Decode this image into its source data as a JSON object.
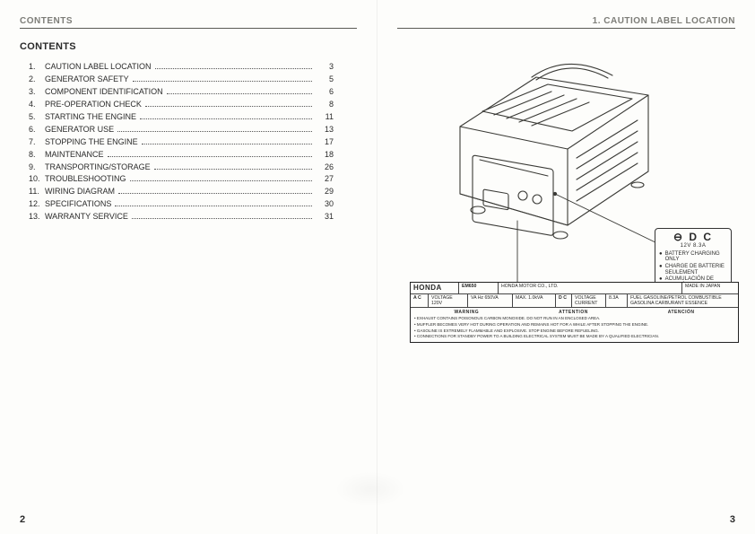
{
  "left": {
    "runningHead": "CONTENTS",
    "title": "CONTENTS",
    "toc": [
      {
        "n": "1.",
        "label": "CAUTION LABEL LOCATION",
        "page": "3"
      },
      {
        "n": "2.",
        "label": "GENERATOR SAFETY",
        "page": "5"
      },
      {
        "n": "3.",
        "label": "COMPONENT IDENTIFICATION",
        "page": "6"
      },
      {
        "n": "4.",
        "label": "PRE-OPERATION CHECK",
        "page": "8"
      },
      {
        "n": "5.",
        "label": "STARTING THE ENGINE",
        "page": "11"
      },
      {
        "n": "6.",
        "label": "GENERATOR USE",
        "page": "13"
      },
      {
        "n": "7.",
        "label": "STOPPING THE ENGINE",
        "page": "17"
      },
      {
        "n": "8.",
        "label": "MAINTENANCE",
        "page": "18"
      },
      {
        "n": "9.",
        "label": "TRANSPORTING/STORAGE",
        "page": "26"
      },
      {
        "n": "10.",
        "label": "TROUBLESHOOTING",
        "page": "27"
      },
      {
        "n": "11.",
        "label": "WIRING DIAGRAM",
        "page": "29"
      },
      {
        "n": "12.",
        "label": "SPECIFICATIONS",
        "page": "30"
      },
      {
        "n": "13.",
        "label": "WARRANTY SERVICE",
        "page": "31"
      }
    ],
    "pageNumber": "2"
  },
  "right": {
    "runningHead": "1. CAUTION LABEL LOCATION",
    "dcLabel": {
      "prefix": "⊖",
      "title": "D C",
      "sub": "12V 8.3A",
      "items": [
        "BATTERY CHARGING ONLY",
        "CHARGE DE BATTERIE SEULEMENT",
        "ACUMULACIÓN DE BATERÍA SOLAMENTE"
      ]
    },
    "specLabel": {
      "brand": "HONDA",
      "model": "EM650",
      "maker": "HONDA MOTOR CO., LTD.",
      "made": "MADE IN JAPAN",
      "row2": {
        "ac": "A C",
        "voltage": "VOLTAGE 120V",
        "va": "VA Hz 650VA",
        "max": "MAX. 1.0kVA",
        "dc": "D C",
        "dcv": "VOLTAGE CURRENT",
        "dca": "8.3A",
        "fuel": "FUEL  GASOLINE/PETROL  COMBUSTIBLE  GASOLINA  CARBURANT  ESSENCE"
      },
      "warnTitles": [
        "WARNING",
        "ATTENTION",
        "ATENCIÓN"
      ],
      "warnLines": [
        "• EXHAUST CONTAINS POISONOUS CARBON MONOXIDE. DO NOT RUN IN AN ENCLOSED AREA.",
        "• MUFFLER BECOMES VERY HOT DURING OPERATION AND REMAINS HOT FOR A WHILE AFTER STOPPING THE ENGINE.",
        "• GASOLINE IS EXTREMELY FLAMMABLE AND EXPLOSIVE. STOP ENGINE BEFORE REFUELING.",
        "• CONNECTIONS FOR STANDBY POWER TO A BUILDING ELECTRICAL SYSTEM MUST BE MADE BY A QUALIFIED ELECTRICIAN."
      ]
    },
    "pageNumber": "3"
  },
  "style": {
    "pageWidth": 842,
    "pageHeight": 595,
    "background": "#fdfdfb",
    "textColor": "#2a2a2a",
    "ruleColor": "#5a5a55",
    "generatorStroke": "#3a3a36",
    "generatorStrokeWidth": 1.1,
    "fonts": {
      "body": "Arial, Helvetica, sans-serif",
      "tocSize": 9,
      "titleSize": 11
    }
  }
}
